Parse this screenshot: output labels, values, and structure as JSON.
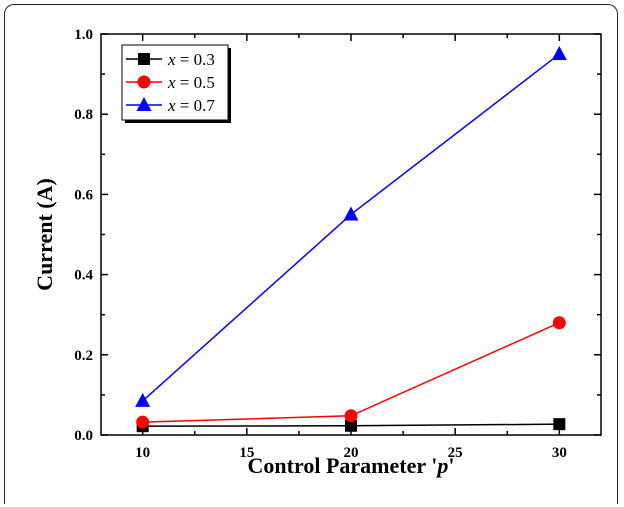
{
  "chart_data": {
    "type": "line",
    "xlabel": "Control Parameter 'p'",
    "xlabel_parts": [
      "Control Parameter '",
      "p",
      "'"
    ],
    "ylabel": "Current (A)",
    "xlim": [
      8,
      32
    ],
    "ylim": [
      0,
      1.0
    ],
    "xticks": [
      10,
      15,
      20,
      25,
      30
    ],
    "yticks": [
      "0.0",
      "0.2",
      "0.4",
      "0.6",
      "0.8",
      "1.0"
    ],
    "x": [
      10,
      20,
      30
    ],
    "series": [
      {
        "name": "x = 0.3",
        "var": "x",
        "value": " = 0.3",
        "color": "#000000",
        "marker": "square",
        "values": [
          0.022,
          0.023,
          0.027
        ]
      },
      {
        "name": "x = 0.5",
        "var": "x",
        "value": " = 0.5",
        "color": "#ff0000",
        "marker": "circle",
        "values": [
          0.032,
          0.048,
          0.28
        ]
      },
      {
        "name": "x = 0.7",
        "var": "x",
        "value": " = 0.7",
        "color": "#0000ff",
        "marker": "triangle",
        "values": [
          0.085,
          0.55,
          0.95
        ]
      }
    ],
    "legend_position": "top-left",
    "grid": false
  }
}
